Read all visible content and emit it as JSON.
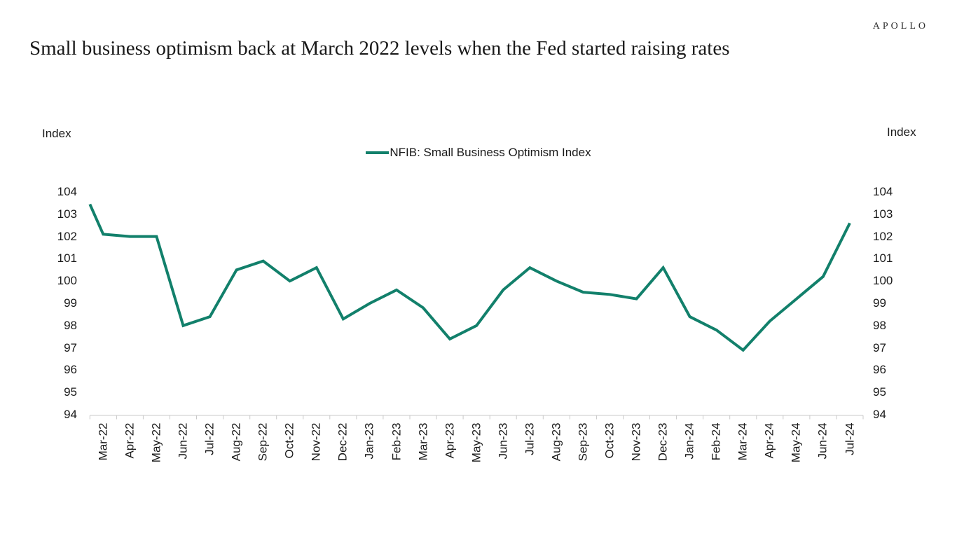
{
  "logo": "APOLLO",
  "title": "Small business optimism back at March 2022 levels when the Fed started raising rates",
  "labels": {
    "index_left": "Index",
    "index_right": "Index"
  },
  "legend": {
    "series_label": "NFIB: Small Business Optimism Index"
  },
  "colors": {
    "line": "#12806B",
    "axis": "#C9C9C9",
    "text": "#1A1A1A"
  },
  "chart_data": {
    "type": "line",
    "title": "Small business optimism back at March 2022 levels when the Fed started raising rates",
    "categories": [
      "Mar-22",
      "Apr-22",
      "May-22",
      "Jun-22",
      "Jul-22",
      "Aug-22",
      "Sep-22",
      "Oct-22",
      "Nov-22",
      "Dec-22",
      "Jan-23",
      "Feb-23",
      "Mar-23",
      "Apr-23",
      "May-23",
      "Jun-23",
      "Jul-23",
      "Aug-23",
      "Sep-23",
      "Oct-23",
      "Nov-23",
      "Dec-23",
      "Jan-24",
      "Feb-24",
      "Mar-24",
      "Apr-24",
      "May-24",
      "Jun-24",
      "Jul-24"
    ],
    "series": [
      {
        "name": "NFIB: Small Business Optimism Index",
        "values": [
          102.1,
          102.0,
          102.0,
          98.0,
          98.4,
          100.5,
          100.9,
          100.0,
          100.6,
          98.3,
          99.0,
          99.6,
          98.8,
          97.4,
          98.0,
          99.6,
          100.6,
          100.0,
          99.5,
          99.4,
          99.2,
          100.6,
          98.4,
          97.8,
          96.9,
          98.2,
          99.2,
          100.2,
          102.6
        ]
      }
    ],
    "left_edge_entry_value": 103.45,
    "xlabel": "",
    "ylabel": "Index",
    "ylim": [
      94,
      104
    ],
    "yticks": [
      94,
      95,
      96,
      97,
      98,
      99,
      100,
      101,
      102,
      103,
      104
    ],
    "grid": false,
    "legend_position": "top-center",
    "x_tick_label_rotation": -90
  }
}
